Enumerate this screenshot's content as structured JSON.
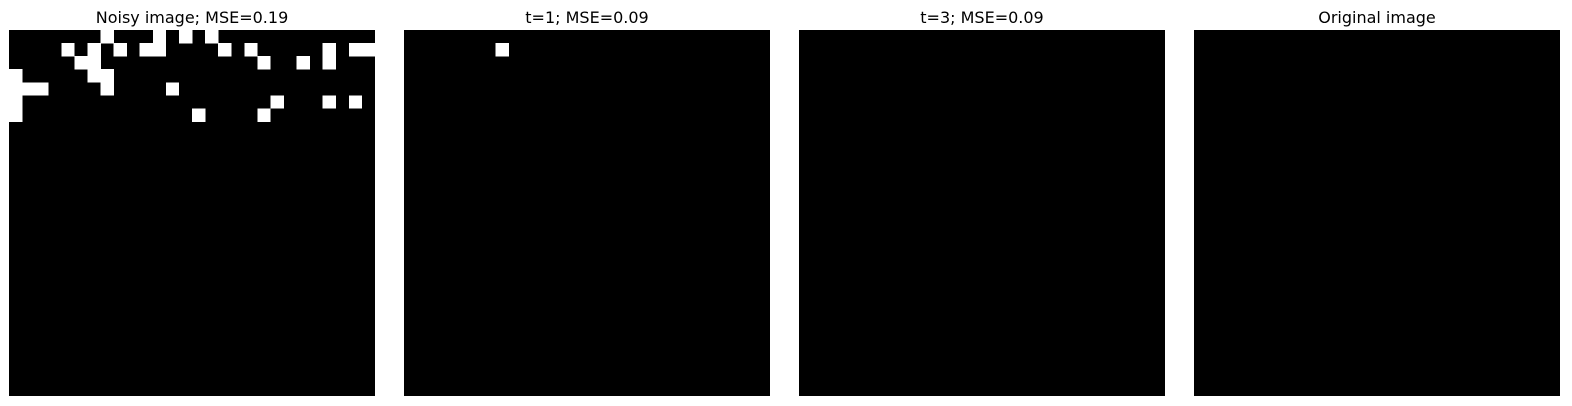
{
  "panels": [
    {
      "title": "Noisy image; MSE=0.19",
      "rows": [
        "0000000100010101000000000000",
        "0000101010110000101000001011",
        "0000011000000000000100101000",
        "1000001100000000000000000000",
        "1110000100001000000000000000",
        "1000000000000000000010001010",
        "1000000000000010000100000000",
        "0000000000000000000000000000",
        "0000000000000000000000000000",
        "0000000000000000000000000000",
        "0000000000000000000000000000",
        "0000000000000000000000000000",
        "0000000000000000000000000000",
        "0000000000000000000000000000",
        "0000000000000000000000000000",
        "0000000000000000000000000000",
        "0000000000000000000000000000",
        "0000000000000000000000000000",
        "0000000000000000000000000000",
        "0000000000000000000000000000",
        "0000000000000000000000000000",
        "0000000000000000000000000000",
        "0000000000000000000000000000",
        "0000000000000000000000000000",
        "0000000000000000000000000000",
        "0000000000000000000000000000",
        "0000000000000000000000000000",
        "0000000000000000000000000000"
      ]
    },
    {
      "title": "t=1; MSE=0.09",
      "rows": [
        "0000000000000000000000000000",
        "0000000100000000000000000000",
        "0000000000000000000000000000",
        "0000000000000000000000000000",
        "0000000000000000000000000000",
        "0000000000000000000000000000",
        "0000000000000000000000000000",
        "0000000000000000000000000000",
        "0000000000000000000000000000",
        "0000000000000000000000000000",
        "0000000000000000000000000000",
        "0000000000000000000000000000",
        "0000000000000000000000000000",
        "0000000000000000000000000000",
        "0000000000000000000000000000",
        "0000000000000000000000000000",
        "0000000000000000000000000000",
        "0000000000000000000000000000",
        "0000000000000000000000000000",
        "0000000000000000000000000000",
        "0000000000000000000000000000",
        "0000000000000000000000000000",
        "0000000000000000000000000000",
        "0000000000000000000000000000",
        "0000000000000000000000000000",
        "0000000000000000000000000000",
        "0000000000000000000000000000",
        "0000000000000000000000000000"
      ]
    },
    {
      "title": "t=3; MSE=0.09",
      "rows": [
        "0000000000000000000000000000",
        "0000000000000000000000000000",
        "0000000000000000000000000000",
        "0000000000000000000000000000",
        "0000000000000000000000000000",
        "0000000000000000000000000000",
        "0000000000000000000000000000",
        "0000000000000000000000000000",
        "0000000000000000000000000000",
        "0000000000000000000000000000",
        "0000000000000000000000000000",
        "0000000000000000000000000000",
        "0000000000000000000000000000",
        "0000000000000000000000000000",
        "0000000000000000000000000000",
        "0000000000000000000000000000",
        "0000000000000000000000000000",
        "0000000000000000000000000000",
        "0000000000000000000000000000",
        "0000000000000000000000000000",
        "0000000000000000000000000000",
        "0000000000000000000000000000",
        "0000000000000000000000000000",
        "0000000000000000000000000000",
        "0000000000000000000000000000",
        "0000000000000000000000000000",
        "0000000000000000000000000000",
        "0000000000000000000000000000"
      ]
    },
    {
      "title": "Original image",
      "rows": [
        "0000000000000000000000000000",
        "0000000000000000000000000000",
        "0000000000000000000000000000",
        "0000000000000000000000000000",
        "0000000000000000000000000000",
        "0000000000000000000000000000",
        "0000000000000000000000000000",
        "0000000000000000000000000000",
        "0000000000000000000000000000",
        "0000000000000000000000000000",
        "0000000000000000000000000000",
        "0000000000000000000000000000",
        "0000000000000000000000000000",
        "0000000000000000000000000000",
        "0000000000000000000000000000",
        "0000000000000000000000000000",
        "0000000000000000000000000000",
        "0000000000000000000000000000",
        "0000000000000000000000000000",
        "0000000000000000000000000000",
        "0000000000000000000000000000",
        "0000000000000000000000000000",
        "0000000000000000000000000000",
        "0000000000000000000000000000",
        "0000000000000000000000000000",
        "0000000000000000000000000000",
        "0000000000000000000000000000",
        "0000000000000000000000000000"
      ]
    }
  ],
  "colors": {
    "background": "#000000",
    "pixel_on": "#ffffff",
    "page": "#ffffff",
    "title_text": "#000000"
  }
}
